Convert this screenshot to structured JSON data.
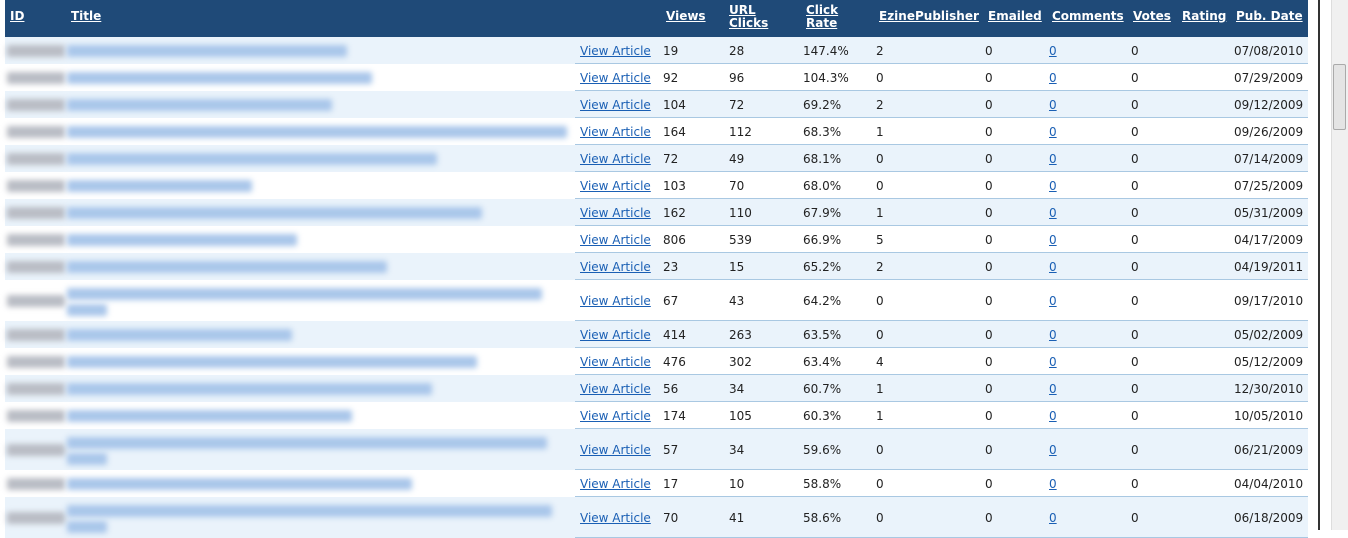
{
  "table": {
    "headers": [
      "ID",
      "Title",
      "Views",
      "URL Clicks",
      "Click Rate",
      "EzinePublisher",
      "Emailed",
      "Comments",
      "Votes",
      "Rating",
      "Pub. Date"
    ],
    "link_text": "View Article",
    "rows": [
      [
        19,
        28,
        "147.4%",
        2,
        0,
        0,
        0,
        "07/08/2010"
      ],
      [
        92,
        96,
        "104.3%",
        0,
        0,
        0,
        0,
        "07/29/2009"
      ],
      [
        104,
        72,
        "69.2%",
        2,
        0,
        0,
        0,
        "09/12/2009"
      ],
      [
        164,
        112,
        "68.3%",
        1,
        0,
        0,
        0,
        "09/26/2009"
      ],
      [
        72,
        49,
        "68.1%",
        0,
        0,
        0,
        0,
        "07/14/2009"
      ],
      [
        103,
        70,
        "68.0%",
        0,
        0,
        0,
        0,
        "07/25/2009"
      ],
      [
        162,
        110,
        "67.9%",
        1,
        0,
        0,
        0,
        "05/31/2009"
      ],
      [
        806,
        539,
        "66.9%",
        5,
        0,
        0,
        0,
        "04/17/2009"
      ],
      [
        23,
        15,
        "65.2%",
        2,
        0,
        0,
        0,
        "04/19/2011"
      ],
      [
        67,
        43,
        "64.2%",
        0,
        0,
        0,
        0,
        "09/17/2010"
      ],
      [
        414,
        263,
        "63.5%",
        0,
        0,
        0,
        0,
        "05/02/2009"
      ],
      [
        476,
        302,
        "63.4%",
        4,
        0,
        0,
        0,
        "05/12/2009"
      ],
      [
        56,
        34,
        "60.7%",
        1,
        0,
        0,
        0,
        "12/30/2010"
      ],
      [
        174,
        105,
        "60.3%",
        1,
        0,
        0,
        0,
        "10/05/2010"
      ],
      [
        57,
        34,
        "59.6%",
        0,
        0,
        0,
        0,
        "06/21/2009"
      ],
      [
        17,
        10,
        "58.8%",
        0,
        0,
        0,
        0,
        "04/04/2010"
      ],
      [
        70,
        41,
        "58.6%",
        0,
        0,
        0,
        0,
        "06/18/2009"
      ]
    ]
  }
}
